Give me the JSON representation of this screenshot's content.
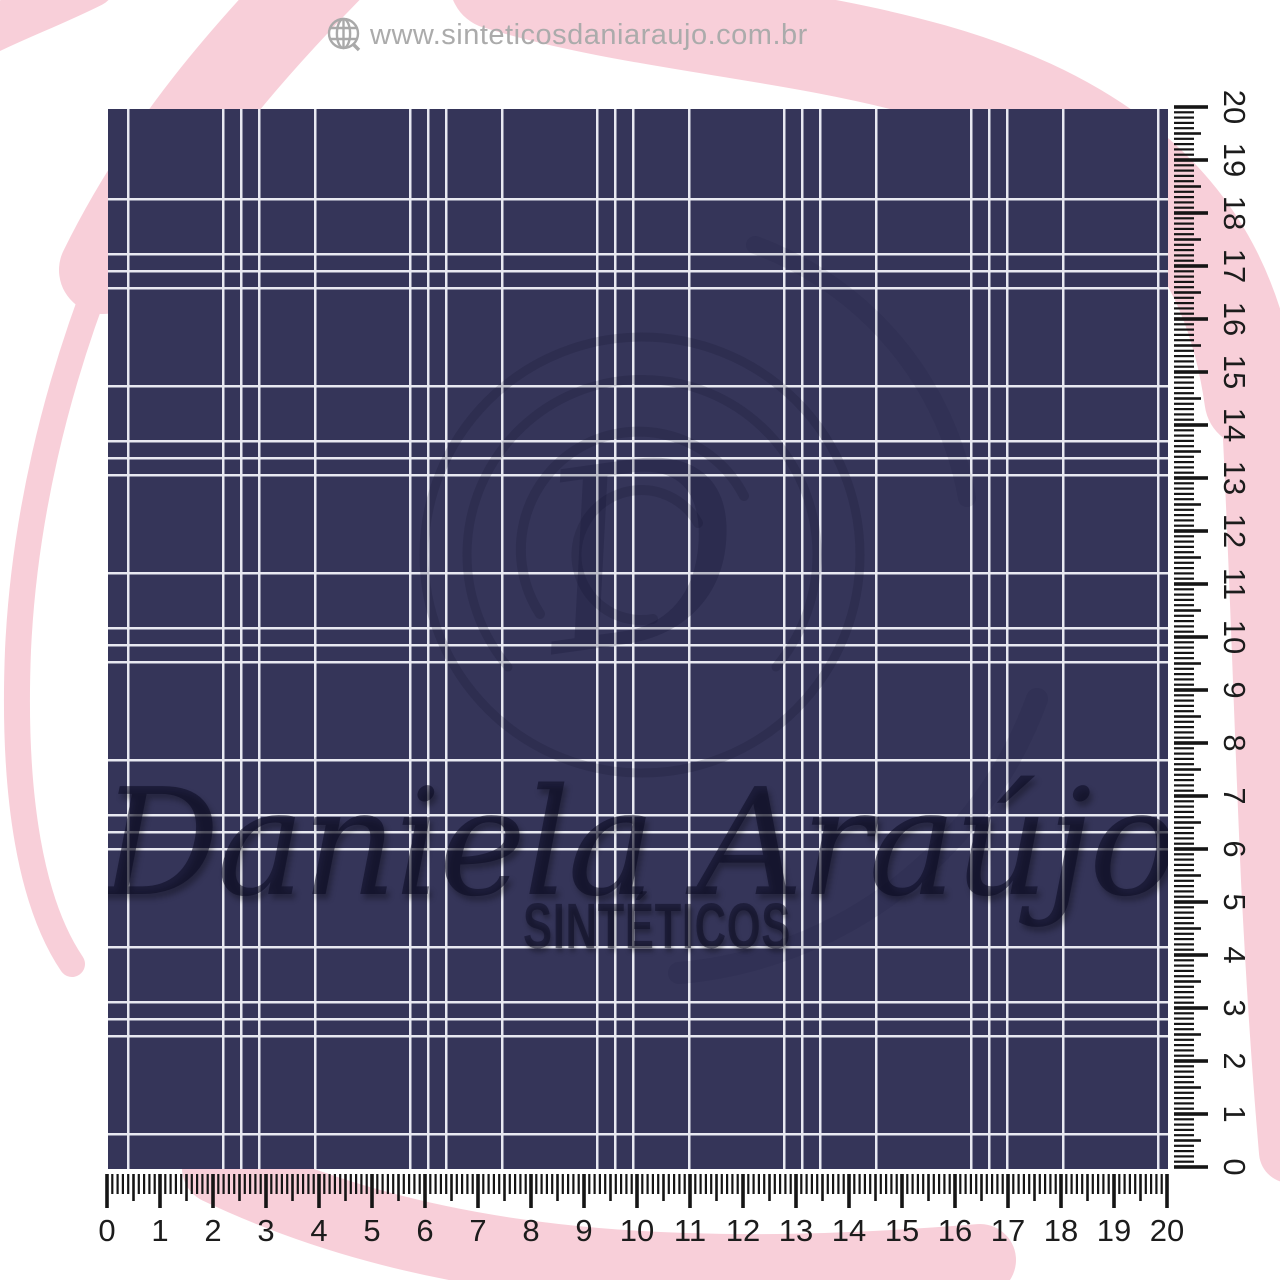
{
  "header": {
    "url": "www.sinteticosdaniaraujo.com.br",
    "icon": "globe-with-magnifier"
  },
  "watermark": {
    "brand": "Daniela Araújo",
    "subtitle": "SINTÉTICOS",
    "monogram": "D"
  },
  "rulers": {
    "unit_count": 20,
    "bottom_labels": [
      "0",
      "1",
      "2",
      "3",
      "4",
      "5",
      "6",
      "7",
      "8",
      "9",
      "10",
      "11",
      "12",
      "13",
      "14",
      "15",
      "16",
      "17",
      "18",
      "19",
      "20"
    ],
    "right_labels_top_to_bottom": [
      "20",
      "19",
      "18",
      "17",
      "16",
      "15",
      "14",
      "13",
      "12",
      "11",
      "10",
      "9",
      "8",
      "7",
      "6",
      "5",
      "4",
      "3",
      "2",
      "1",
      "0"
    ]
  },
  "colors": {
    "fabric_navy": "#353559",
    "plaid_line_white": "#e8e9f1",
    "swirl_pink": "#f8cfd9",
    "url_gray": "#ababab",
    "ruler_ink": "#1c1c1c"
  }
}
